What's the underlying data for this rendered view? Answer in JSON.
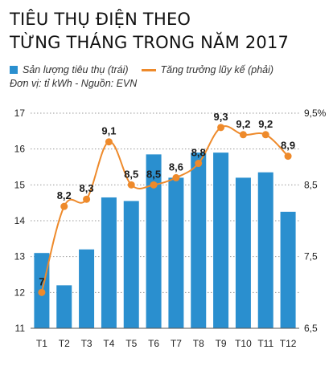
{
  "title_line_1": "TIÊU THỤ ĐIỆN THEO",
  "title_line_2": "TỪNG THÁNG TRONG NĂM 2017",
  "legend": {
    "bar_label": "Sản lượng tiêu thụ (trái)",
    "line_label": "Tăng trưởng lũy kế (phải)"
  },
  "source_note": "Đơn vị: tỉ kWh  -  Nguồn: EVN",
  "colors": {
    "bar": "#2a8fcf",
    "line": "#ee8a2b",
    "axis": "#555555",
    "grid": "#9a9a9a"
  },
  "chart_data": {
    "type": "bar",
    "categories": [
      "T1",
      "T2",
      "T3",
      "T4",
      "T5",
      "T6",
      "T7",
      "T8",
      "T9",
      "T10",
      "T11",
      "T12"
    ],
    "series": [
      {
        "name": "Sản lượng tiêu thụ (trái)",
        "axis": "left",
        "type": "bar",
        "values": [
          13.1,
          12.2,
          13.2,
          14.65,
          14.55,
          15.85,
          15.2,
          15.9,
          15.9,
          15.2,
          15.35,
          14.25
        ]
      },
      {
        "name": "Tăng trưởng lũy kế (phải)",
        "axis": "right",
        "type": "line",
        "values": [
          7,
          8.2,
          8.3,
          9.1,
          8.5,
          8.5,
          8.6,
          8.8,
          9.3,
          9.2,
          9.2,
          8.9
        ],
        "data_labels": [
          "7",
          "8,2",
          "8,3",
          "9,1",
          "8,5",
          "8,5",
          "8,6",
          "8,8",
          "9,3",
          "9,2",
          "9,2",
          "8,9"
        ]
      }
    ],
    "left_axis": {
      "ylim": [
        11,
        17
      ],
      "ticks": [
        11,
        12,
        13,
        14,
        15,
        16,
        17
      ],
      "tick_labels": [
        "11",
        "12",
        "13",
        "14",
        "15",
        "16",
        "17"
      ]
    },
    "right_axis": {
      "ylim": [
        6.5,
        9.5
      ],
      "ticks": [
        6.5,
        7.5,
        8.5,
        9.5
      ],
      "tick_labels": [
        "6,5",
        "7,5",
        "8,5",
        "9,5%"
      ]
    },
    "grid": "horizontal dotted"
  }
}
